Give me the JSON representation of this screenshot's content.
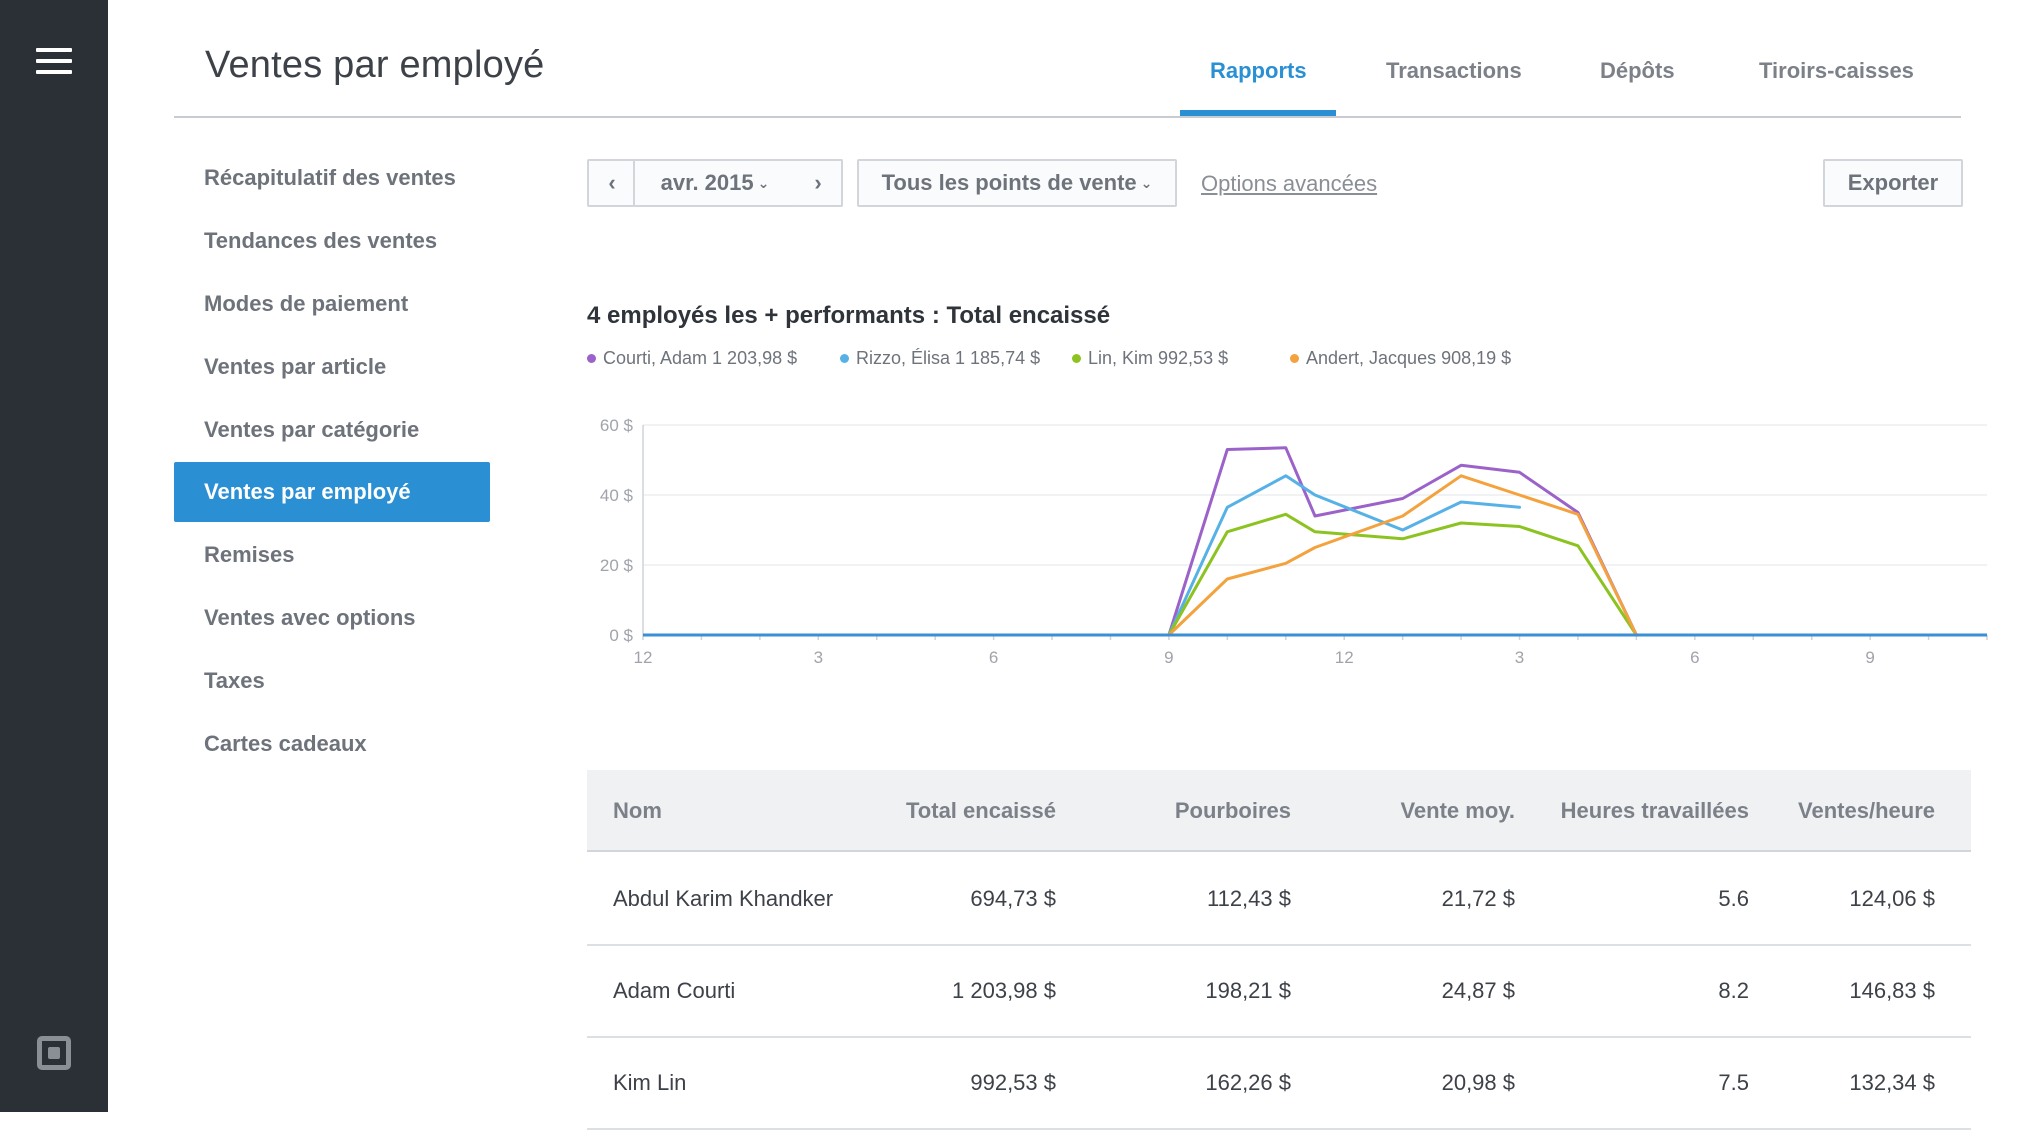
{
  "page": {
    "title": "Ventes par employé"
  },
  "top_tabs": [
    {
      "label": "Rapports",
      "active": true
    },
    {
      "label": "Transactions",
      "active": false
    },
    {
      "label": "Dépôts",
      "active": false
    },
    {
      "label": "Tiroirs-caisses",
      "active": false
    }
  ],
  "sidebar": {
    "items": [
      {
        "label": "Récapitulatif des ventes"
      },
      {
        "label": "Tendances des ventes"
      },
      {
        "label": "Modes de paiement"
      },
      {
        "label": "Ventes par article"
      },
      {
        "label": "Ventes par catégorie"
      },
      {
        "label": "Ventes par employé",
        "active": true
      },
      {
        "label": "Remises"
      },
      {
        "label": "Ventes avec options"
      },
      {
        "label": "Taxes"
      },
      {
        "label": "Cartes cadeaux"
      }
    ]
  },
  "toolbar": {
    "prev_icon": "‹",
    "month": "avr. 2015",
    "next_icon": "›",
    "location": "Tous les points de vente",
    "advanced": "Options avancées",
    "export": "Exporter"
  },
  "icons": {
    "menu": "hamburger-menu-icon",
    "logo": "square-logo-icon",
    "prev": "chevron-left-icon",
    "next": "chevron-right-icon",
    "dropdown": "chevron-down-icon"
  },
  "colors": {
    "accent": "#2b8fd4",
    "rail": "#2b3037",
    "purple": "#9b63c9",
    "blue": "#56b1e6",
    "green": "#8cc321",
    "orange": "#f3a23e",
    "axis": "#3a8fd6"
  },
  "chart_data": {
    "type": "line",
    "title": "4 employés les + performants : Total encaissé",
    "xlabel": "",
    "ylabel": "",
    "x_ticks": [
      "12",
      "3",
      "6",
      "9",
      "12",
      "3",
      "6",
      "9"
    ],
    "x_tick_hours": [
      0,
      3,
      6,
      9,
      12,
      15,
      18,
      21
    ],
    "xlim": [
      0,
      23
    ],
    "y_ticks": [
      "60 $",
      "40 $",
      "20 $",
      "0 $"
    ],
    "y_tick_values": [
      60,
      40,
      20,
      0
    ],
    "ylim": [
      0,
      60
    ],
    "grid": true,
    "legend_position": "top-left",
    "series": [
      {
        "name": "Courti, Adam 1 203,98 $",
        "color": "#9b63c9",
        "points": [
          [
            9,
            0
          ],
          [
            10,
            53
          ],
          [
            11,
            53.5
          ],
          [
            11.5,
            34
          ],
          [
            13,
            39
          ],
          [
            14,
            48.5
          ],
          [
            15,
            46.5
          ],
          [
            16,
            35
          ],
          [
            17,
            0
          ]
        ]
      },
      {
        "name": "Rizzo, Élisa 1 185,74 $",
        "color": "#56b1e6",
        "points": [
          [
            9,
            0
          ],
          [
            10,
            36.5
          ],
          [
            11,
            45.5
          ],
          [
            11.5,
            40
          ],
          [
            13,
            30
          ],
          [
            14,
            38
          ],
          [
            15,
            36.5
          ]
        ]
      },
      {
        "name": "Lin, Kim 992,53 $",
        "color": "#8cc321",
        "points": [
          [
            9,
            0
          ],
          [
            10,
            29.5
          ],
          [
            11,
            34.5
          ],
          [
            11.5,
            29.5
          ],
          [
            13,
            27.5
          ],
          [
            14,
            32
          ],
          [
            15,
            31
          ],
          [
            16,
            25.5
          ],
          [
            17,
            0
          ]
        ]
      },
      {
        "name": "Andert, Jacques 908,19 $",
        "color": "#f3a23e",
        "points": [
          [
            9,
            0
          ],
          [
            10,
            16
          ],
          [
            11,
            20.5
          ],
          [
            11.5,
            25
          ],
          [
            13,
            34
          ],
          [
            14,
            45.5
          ],
          [
            15,
            40
          ],
          [
            16,
            34.5
          ],
          [
            17,
            0
          ]
        ]
      }
    ]
  },
  "table": {
    "headers": [
      "Nom",
      "Total encaissé",
      "Pourboires",
      "Vente moy.",
      "Heures travaillées",
      "Ventes/heure"
    ],
    "rows": [
      [
        "Abdul Karim Khandker",
        "694,73 $",
        "112,43 $",
        "21,72 $",
        "5.6",
        "124,06 $"
      ],
      [
        "Adam Courti",
        "1 203,98 $",
        "198,21 $",
        "24,87 $",
        "8.2",
        "146,83 $"
      ],
      [
        "Kim Lin",
        "992,53 $",
        "162,26 $",
        "20,98 $",
        "7.5",
        "132,34 $"
      ]
    ]
  }
}
